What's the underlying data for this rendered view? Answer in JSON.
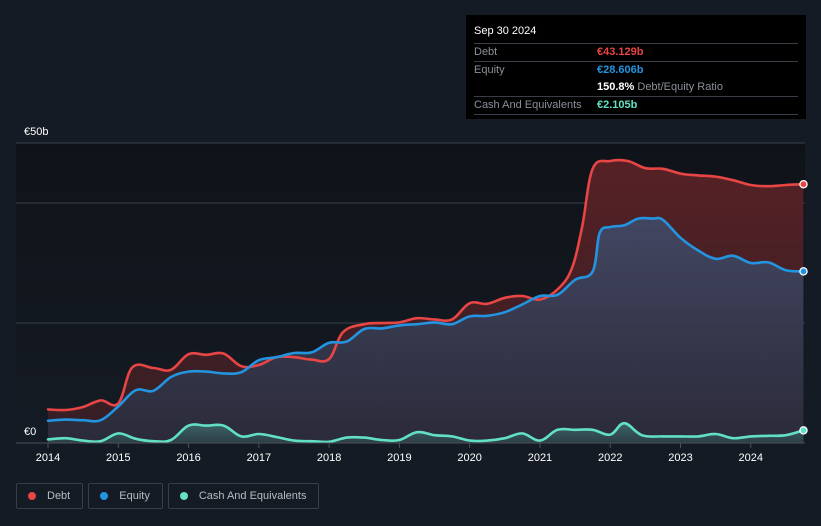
{
  "tooltip": {
    "date": "Sep 30 2024",
    "debt_label": "Debt",
    "debt_value": "€43.129b",
    "equity_label": "Equity",
    "equity_value": "€28.606b",
    "ratio_value": "150.8%",
    "ratio_label": "Debt/Equity Ratio",
    "cash_label": "Cash And Equivalents",
    "cash_value": "€2.105b"
  },
  "legend": [
    {
      "label": "Debt",
      "color": "#e84545"
    },
    {
      "label": "Equity",
      "color": "#2394df"
    },
    {
      "label": "Cash And Equivalents",
      "color": "#62e0c6"
    }
  ],
  "chart_data": {
    "type": "area",
    "title": "",
    "xlabel": "",
    "ylabel": "",
    "unit": "€ billions",
    "ylim": [
      0,
      50
    ],
    "xlim": [
      2014.0,
      2024.75
    ],
    "y_tick_labels": [
      {
        "value": 50,
        "label": "€50b"
      },
      {
        "value": 0,
        "label": "€0"
      }
    ],
    "gridlines": [
      20,
      40,
      50
    ],
    "x_tick_labels": [
      "2014",
      "2015",
      "2016",
      "2017",
      "2018",
      "2019",
      "2020",
      "2021",
      "2022",
      "2023",
      "2024"
    ],
    "x_ticks": [
      2014,
      2015,
      2016,
      2017,
      2018,
      2019,
      2020,
      2021,
      2022,
      2023,
      2024
    ],
    "legend_position": "bottom-left",
    "series": [
      {
        "name": "Debt",
        "color": "#e84545",
        "points": [
          [
            2014.0,
            5.6
          ],
          [
            2014.25,
            5.5
          ],
          [
            2014.5,
            6.0
          ],
          [
            2014.75,
            7.1
          ],
          [
            2015.0,
            6.6
          ],
          [
            2015.2,
            12.6
          ],
          [
            2015.5,
            12.5
          ],
          [
            2015.75,
            12.2
          ],
          [
            2016.0,
            14.8
          ],
          [
            2016.25,
            14.7
          ],
          [
            2016.5,
            14.9
          ],
          [
            2016.75,
            12.8
          ],
          [
            2017.0,
            13.0
          ],
          [
            2017.25,
            14.3
          ],
          [
            2017.5,
            14.3
          ],
          [
            2017.75,
            13.9
          ],
          [
            2018.0,
            14.0
          ],
          [
            2018.2,
            18.5
          ],
          [
            2018.5,
            19.8
          ],
          [
            2018.75,
            20.0
          ],
          [
            2019.0,
            20.1
          ],
          [
            2019.25,
            20.8
          ],
          [
            2019.5,
            20.6
          ],
          [
            2019.75,
            20.6
          ],
          [
            2020.0,
            23.3
          ],
          [
            2020.25,
            23.2
          ],
          [
            2020.5,
            24.2
          ],
          [
            2020.75,
            24.5
          ],
          [
            2021.0,
            23.9
          ],
          [
            2021.25,
            25.6
          ],
          [
            2021.45,
            29.0
          ],
          [
            2021.6,
            36.0
          ],
          [
            2021.75,
            45.7
          ],
          [
            2022.0,
            47.0
          ],
          [
            2022.25,
            47.0
          ],
          [
            2022.5,
            45.8
          ],
          [
            2022.75,
            45.7
          ],
          [
            2023.0,
            44.9
          ],
          [
            2023.25,
            44.6
          ],
          [
            2023.5,
            44.4
          ],
          [
            2023.75,
            43.8
          ],
          [
            2024.0,
            43.0
          ],
          [
            2024.25,
            42.8
          ],
          [
            2024.5,
            43.0
          ],
          [
            2024.75,
            43.129
          ]
        ]
      },
      {
        "name": "Equity",
        "color": "#2394df",
        "points": [
          [
            2014.0,
            3.7
          ],
          [
            2014.25,
            3.9
          ],
          [
            2014.5,
            3.8
          ],
          [
            2014.75,
            3.8
          ],
          [
            2015.0,
            6.1
          ],
          [
            2015.25,
            8.8
          ],
          [
            2015.5,
            8.7
          ],
          [
            2015.75,
            11.0
          ],
          [
            2016.0,
            11.9
          ],
          [
            2016.25,
            11.9
          ],
          [
            2016.5,
            11.6
          ],
          [
            2016.75,
            11.8
          ],
          [
            2017.0,
            13.8
          ],
          [
            2017.25,
            14.3
          ],
          [
            2017.5,
            15.0
          ],
          [
            2017.75,
            15.1
          ],
          [
            2018.0,
            16.7
          ],
          [
            2018.25,
            16.9
          ],
          [
            2018.5,
            19.0
          ],
          [
            2018.75,
            19.1
          ],
          [
            2019.0,
            19.6
          ],
          [
            2019.25,
            19.8
          ],
          [
            2019.5,
            20.1
          ],
          [
            2019.75,
            19.8
          ],
          [
            2020.0,
            21.1
          ],
          [
            2020.25,
            21.2
          ],
          [
            2020.5,
            21.8
          ],
          [
            2020.75,
            23.1
          ],
          [
            2021.0,
            24.5
          ],
          [
            2021.25,
            24.7
          ],
          [
            2021.5,
            27.2
          ],
          [
            2021.75,
            28.6
          ],
          [
            2021.85,
            35.0
          ],
          [
            2022.0,
            36.0
          ],
          [
            2022.2,
            36.3
          ],
          [
            2022.4,
            37.4
          ],
          [
            2022.6,
            37.4
          ],
          [
            2022.75,
            37.2
          ],
          [
            2023.0,
            34.2
          ],
          [
            2023.25,
            32.1
          ],
          [
            2023.5,
            30.7
          ],
          [
            2023.75,
            31.2
          ],
          [
            2024.0,
            30.0
          ],
          [
            2024.25,
            30.1
          ],
          [
            2024.5,
            28.8
          ],
          [
            2024.75,
            28.606
          ]
        ]
      },
      {
        "name": "Cash And Equivalents",
        "color": "#62e0c6",
        "points": [
          [
            2014.0,
            0.6
          ],
          [
            2014.25,
            0.8
          ],
          [
            2014.5,
            0.4
          ],
          [
            2014.75,
            0.3
          ],
          [
            2015.0,
            1.6
          ],
          [
            2015.25,
            0.7
          ],
          [
            2015.5,
            0.3
          ],
          [
            2015.75,
            0.5
          ],
          [
            2016.0,
            2.9
          ],
          [
            2016.25,
            2.9
          ],
          [
            2016.5,
            2.9
          ],
          [
            2016.75,
            1.1
          ],
          [
            2017.0,
            1.5
          ],
          [
            2017.25,
            1.0
          ],
          [
            2017.5,
            0.4
          ],
          [
            2017.75,
            0.3
          ],
          [
            2018.0,
            0.2
          ],
          [
            2018.25,
            0.9
          ],
          [
            2018.5,
            0.9
          ],
          [
            2018.75,
            0.5
          ],
          [
            2019.0,
            0.5
          ],
          [
            2019.25,
            1.8
          ],
          [
            2019.5,
            1.3
          ],
          [
            2019.75,
            1.1
          ],
          [
            2020.0,
            0.4
          ],
          [
            2020.25,
            0.4
          ],
          [
            2020.5,
            0.8
          ],
          [
            2020.75,
            1.6
          ],
          [
            2021.0,
            0.4
          ],
          [
            2021.25,
            2.2
          ],
          [
            2021.5,
            2.2
          ],
          [
            2021.75,
            2.2
          ],
          [
            2022.0,
            1.4
          ],
          [
            2022.2,
            3.3
          ],
          [
            2022.45,
            1.3
          ],
          [
            2022.75,
            1.1
          ],
          [
            2023.0,
            1.1
          ],
          [
            2023.25,
            1.1
          ],
          [
            2023.5,
            1.5
          ],
          [
            2023.75,
            0.8
          ],
          [
            2024.0,
            1.1
          ],
          [
            2024.25,
            1.2
          ],
          [
            2024.5,
            1.3
          ],
          [
            2024.75,
            2.105
          ]
        ]
      }
    ]
  }
}
